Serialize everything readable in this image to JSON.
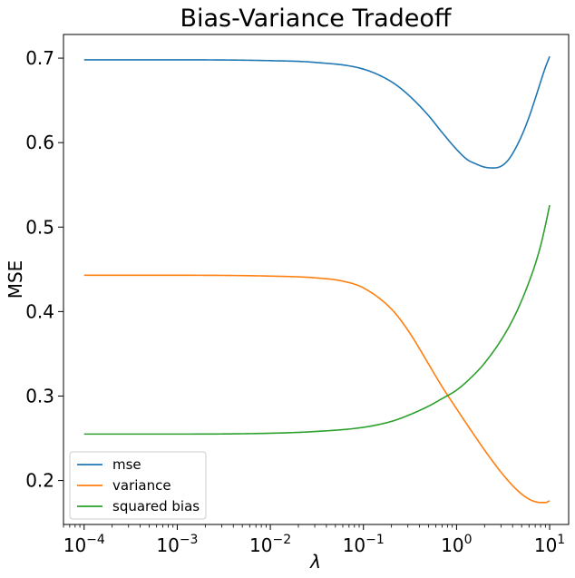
{
  "chart_data": {
    "type": "line",
    "title": "Bias-Variance Tradeoff",
    "xlabel": "λ",
    "ylabel": "MSE",
    "xscale": "log",
    "xlim": [
      6e-05,
      16
    ],
    "ylim": [
      0.148,
      0.728
    ],
    "xticks": [
      {
        "value": 0.0001,
        "base": "10",
        "exp": "−4"
      },
      {
        "value": 0.001,
        "base": "10",
        "exp": "−3"
      },
      {
        "value": 0.01,
        "base": "10",
        "exp": "−2"
      },
      {
        "value": 0.1,
        "base": "10",
        "exp": "−1"
      },
      {
        "value": 1,
        "base": "10",
        "exp": "0"
      },
      {
        "value": 10,
        "base": "10",
        "exp": "1"
      }
    ],
    "yticks": [
      {
        "value": 0.2,
        "label": "0.2"
      },
      {
        "value": 0.3,
        "label": "0.3"
      },
      {
        "value": 0.4,
        "label": "0.4"
      },
      {
        "value": 0.5,
        "label": "0.5"
      },
      {
        "value": 0.6,
        "label": "0.6"
      },
      {
        "value": 0.7,
        "label": "0.7"
      }
    ],
    "grid": false,
    "legend_position": "lower-left",
    "series": [
      {
        "name": "mse",
        "color": "#1f77b4",
        "x": [
          0.0001,
          0.001,
          0.01,
          0.03,
          0.1,
          0.2,
          0.3,
          0.5,
          0.7,
          1,
          1.3,
          1.6,
          2,
          2.5,
          3,
          3.5,
          4,
          5,
          6,
          7,
          8,
          9,
          10
        ],
        "y": [
          0.698,
          0.698,
          0.697,
          0.695,
          0.687,
          0.672,
          0.657,
          0.632,
          0.612,
          0.592,
          0.58,
          0.575,
          0.571,
          0.57,
          0.572,
          0.578,
          0.587,
          0.608,
          0.63,
          0.652,
          0.672,
          0.689,
          0.702
        ]
      },
      {
        "name": "variance",
        "color": "#ff7f0e",
        "x": [
          0.0001,
          0.001,
          0.01,
          0.03,
          0.06,
          0.1,
          0.2,
          0.3,
          0.5,
          0.7,
          1,
          1.5,
          2,
          3,
          4,
          5,
          6,
          7,
          8,
          9,
          10
        ],
        "y": [
          0.443,
          0.443,
          0.442,
          0.44,
          0.436,
          0.428,
          0.403,
          0.378,
          0.338,
          0.311,
          0.285,
          0.256,
          0.236,
          0.21,
          0.194,
          0.184,
          0.178,
          0.175,
          0.174,
          0.174,
          0.176
        ]
      },
      {
        "name": "squared bias",
        "color": "#2ca02c",
        "x": [
          0.0001,
          0.001,
          0.01,
          0.03,
          0.1,
          0.2,
          0.3,
          0.5,
          0.7,
          1,
          1.5,
          2,
          3,
          4,
          5,
          6,
          7,
          8,
          9,
          10
        ],
        "y": [
          0.255,
          0.255,
          0.256,
          0.258,
          0.263,
          0.27,
          0.277,
          0.288,
          0.297,
          0.307,
          0.324,
          0.339,
          0.366,
          0.39,
          0.413,
          0.435,
          0.456,
          0.478,
          0.502,
          0.526
        ]
      }
    ]
  }
}
